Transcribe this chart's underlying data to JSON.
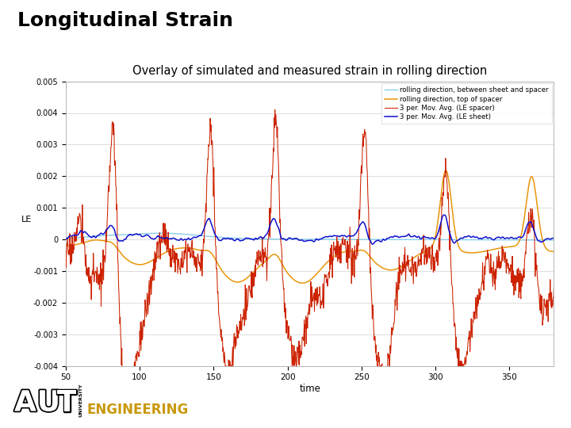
{
  "title_main": "Longitudinal Strain",
  "title_sub": "Overlay of simulated and measured strain in rolling direction",
  "xlabel": "time",
  "ylabel": "LE",
  "xlim": [
    50,
    380
  ],
  "ylim": [
    -0.004,
    0.005
  ],
  "yticks": [
    -0.004,
    -0.003,
    -0.002,
    -0.001,
    0,
    0.001,
    0.002,
    0.003,
    0.004,
    0.005
  ],
  "xticks": [
    50,
    100,
    150,
    200,
    250,
    300,
    350
  ],
  "legend_labels": [
    "rolling direction, between sheet and spacer",
    "rolling direction, top of spacer",
    "3 per. Mov. Avg. (LE spacer)",
    "3 per. Mov. Avg. (LE sheet)"
  ],
  "colors": {
    "cyan_line": "#87CEEB",
    "orange_line": "#E8960A",
    "red_line": "#CC2200",
    "blue_line": "#1010CC"
  },
  "spike_positions": [
    82,
    148,
    192,
    252,
    307,
    365
  ],
  "footer_color_eng": "#C8980A"
}
